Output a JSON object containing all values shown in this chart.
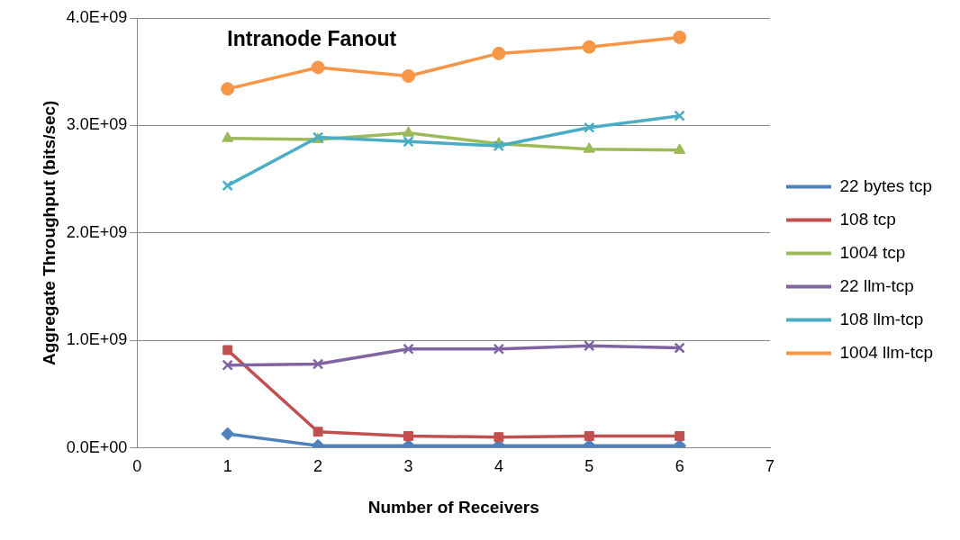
{
  "chart_data": {
    "type": "line",
    "title": "Intranode Fanout",
    "xlabel": "Number of Receivers",
    "ylabel": "Aggregate Throughput (bits/sec)",
    "x": [
      1,
      2,
      3,
      4,
      5,
      6
    ],
    "series": [
      {
        "name": "22 bytes tcp",
        "color": "#4f81bd",
        "marker": "diamond",
        "values": [
          130000000.0,
          20000000.0,
          20000000.0,
          20000000.0,
          20000000.0,
          20000000.0
        ]
      },
      {
        "name": "108 tcp",
        "color": "#c0504d",
        "marker": "square",
        "values": [
          910000000.0,
          150000000.0,
          110000000.0,
          100000000.0,
          110000000.0,
          110000000.0
        ]
      },
      {
        "name": "1004 tcp",
        "color": "#9bbb59",
        "marker": "triangle",
        "values": [
          2880000000.0,
          2870000000.0,
          2930000000.0,
          2830000000.0,
          2780000000.0,
          2770000000.0
        ]
      },
      {
        "name": "22 llm-tcp",
        "color": "#8064a2",
        "marker": "cross",
        "values": [
          770000000.0,
          780000000.0,
          920000000.0,
          920000000.0,
          950000000.0,
          930000000.0
        ]
      },
      {
        "name": "108 llm-tcp",
        "color": "#4bacc6",
        "marker": "cross",
        "values": [
          2440000000.0,
          2890000000.0,
          2850000000.0,
          2810000000.0,
          2980000000.0,
          3090000000.0
        ]
      },
      {
        "name": "1004 llm-tcp",
        "color": "#f79646",
        "marker": "circle",
        "values": [
          3340000000.0,
          3540000000.0,
          3460000000.0,
          3670000000.0,
          3730000000.0,
          3820000000.0
        ]
      }
    ],
    "xlim": [
      0,
      7
    ],
    "xticks": [
      0,
      1,
      2,
      3,
      4,
      5,
      6,
      7
    ],
    "ylim": [
      0,
      4000000000.0
    ],
    "yticks": [
      {
        "value": 0,
        "label": "0.0E+00"
      },
      {
        "value": 1000000000.0,
        "label": "1.0E+09"
      },
      {
        "value": 2000000000.0,
        "label": "2.0E+09"
      },
      {
        "value": 3000000000.0,
        "label": "3.0E+09"
      },
      {
        "value": 4000000000.0,
        "label": "4.0E+09"
      }
    ],
    "grid": "y",
    "legend": "right",
    "line_style": "solid"
  }
}
